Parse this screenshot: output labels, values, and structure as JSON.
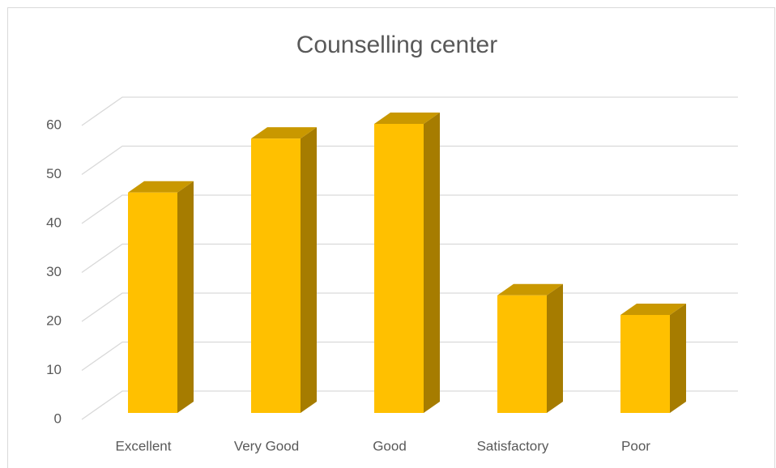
{
  "chart_data": {
    "type": "bar3d",
    "title": "Counselling center",
    "categories": [
      "Excellent",
      "Very Good",
      "Good",
      "Satisfactory",
      "Poor"
    ],
    "values": [
      45,
      56,
      59,
      24,
      20
    ],
    "color": "#ffc000",
    "ylim": [
      0,
      60
    ],
    "yticks": [
      0,
      10,
      20,
      30,
      40,
      50,
      60
    ],
    "grid": true
  }
}
